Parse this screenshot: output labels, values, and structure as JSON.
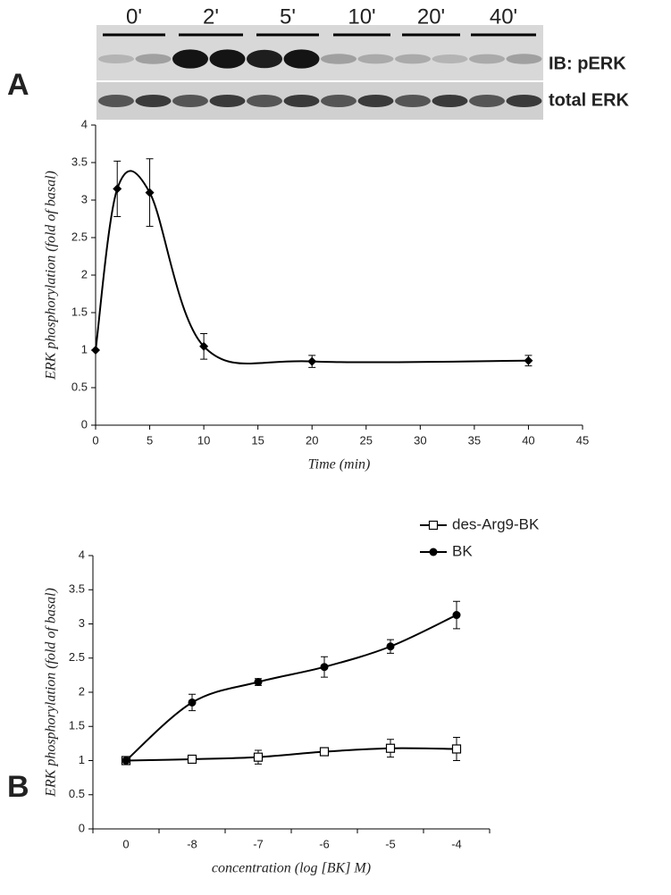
{
  "blot": {
    "lanes": [
      "0'",
      "2'",
      "5'",
      "10'",
      "20'",
      "40'"
    ],
    "rows": [
      "IB: pERK",
      "total ERK"
    ]
  },
  "chart_data": [
    {
      "type": "line",
      "panel": "A",
      "x": [
        0,
        2,
        5,
        10,
        20,
        40
      ],
      "values": [
        1,
        3.15,
        3.1,
        1.05,
        0.85,
        0.86
      ],
      "errors": [
        0,
        0.37,
        0.45,
        0.17,
        0.08,
        0.07
      ],
      "color": "#000000",
      "marker": "diamond",
      "smooth": true,
      "xlim": [
        0,
        45
      ],
      "xticks": [
        0,
        5,
        10,
        15,
        20,
        25,
        30,
        35,
        40,
        45
      ],
      "ylim": [
        0,
        4
      ],
      "yticks": [
        0,
        0.5,
        1,
        1.5,
        2,
        2.5,
        3,
        3.5,
        4
      ],
      "xlabel": "Time (min)",
      "ylabel": "ERK phosphorylation (fold of basal)"
    },
    {
      "type": "line",
      "panel": "B",
      "categories": [
        "0",
        "-8",
        "-7",
        "-6",
        "-5",
        "-4"
      ],
      "series": [
        {
          "name": "des-Arg9-BK",
          "color": "#000000",
          "marker": "open-square",
          "values": [
            1,
            1.02,
            1.05,
            1.13,
            1.18,
            1.17
          ],
          "errors": [
            0,
            0.03,
            0.1,
            0.05,
            0.13,
            0.17
          ]
        },
        {
          "name": "BK",
          "color": "#000000",
          "marker": "filled-circle",
          "values": [
            1,
            1.85,
            2.15,
            2.37,
            2.67,
            3.13
          ],
          "errors": [
            0,
            0.12,
            0.05,
            0.15,
            0.1,
            0.2
          ]
        }
      ],
      "smooth": true,
      "ylim": [
        0,
        4
      ],
      "yticks": [
        0,
        0.5,
        1,
        1.5,
        2,
        2.5,
        3,
        3.5,
        4
      ],
      "xlabel": "concentration (log [BK] M)",
      "ylabel": "ERK phosphorylation (fold of basal)",
      "legend": "top-right"
    }
  ]
}
